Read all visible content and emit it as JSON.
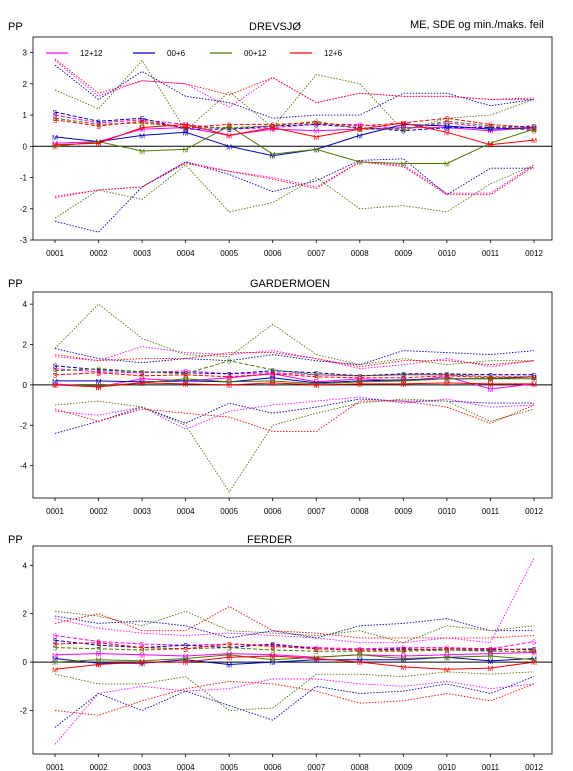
{
  "header": {
    "right_label": "ME, SDE og min./maks. feil"
  },
  "legend": [
    {
      "label": "12+12",
      "color": "#ff00ff"
    },
    {
      "label": "00+6",
      "color": "#0000c0"
    },
    {
      "label": "00+12",
      "color": "#507800"
    },
    {
      "label": "12+6",
      "color": "#ff0000"
    }
  ],
  "chart_data": [
    {
      "type": "line",
      "title": "DREVSJØ",
      "ylabel": "PP",
      "categories": [
        "0001",
        "0002",
        "0003",
        "0004",
        "0005",
        "0006",
        "0007",
        "0008",
        "0009",
        "0010",
        "0011",
        "0012"
      ],
      "ylim": [
        -3,
        3.5
      ],
      "yticks": [
        -3,
        -2,
        -1,
        0,
        1,
        2,
        3
      ],
      "series": [
        {
          "name": "12+12",
          "color": "#ff00ff",
          "me": [
            0.1,
            0.15,
            0.55,
            0.6,
            0.35,
            0.55,
            0.5,
            0.55,
            0.6,
            0.6,
            0.5,
            0.6
          ],
          "sde": [
            1.0,
            0.75,
            0.85,
            0.7,
            0.55,
            0.6,
            0.7,
            0.7,
            0.55,
            0.75,
            0.6,
            0.55
          ],
          "max": [
            2.75,
            1.6,
            2.1,
            2.0,
            1.25,
            2.2,
            1.4,
            1.7,
            1.6,
            1.6,
            1.5,
            1.5
          ],
          "min": [
            -1.6,
            -1.4,
            -1.3,
            -0.5,
            -0.8,
            -1.0,
            -1.3,
            -0.5,
            -0.6,
            -1.5,
            -1.5,
            -0.6
          ]
        },
        {
          "name": "00+6",
          "color": "#0000c0",
          "me": [
            0.3,
            0.15,
            0.35,
            0.45,
            0.0,
            -0.3,
            -0.1,
            0.35,
            0.7,
            0.65,
            0.55,
            0.6
          ],
          "sde": [
            1.1,
            0.8,
            0.9,
            0.55,
            0.55,
            0.65,
            0.7,
            0.6,
            0.5,
            0.6,
            0.6,
            0.65
          ],
          "max": [
            2.6,
            1.5,
            2.4,
            1.6,
            1.4,
            0.9,
            1.0,
            1.0,
            1.7,
            1.7,
            1.3,
            1.5
          ],
          "min": [
            -2.4,
            -2.75,
            -1.3,
            -0.5,
            -0.9,
            -1.45,
            -1.1,
            -0.45,
            -0.4,
            -1.55,
            -0.7,
            -0.7
          ]
        },
        {
          "name": "00+12",
          "color": "#507800",
          "me": [
            0.0,
            0.15,
            -0.15,
            -0.1,
            0.65,
            -0.25,
            -0.1,
            -0.5,
            -0.55,
            -0.55,
            0.1,
            0.55
          ],
          "sde": [
            0.9,
            0.7,
            0.75,
            0.6,
            0.6,
            0.65,
            0.8,
            0.55,
            0.55,
            0.8,
            0.65,
            0.5
          ],
          "max": [
            1.8,
            1.2,
            2.75,
            0.5,
            1.75,
            0.6,
            2.3,
            2.0,
            0.5,
            0.9,
            1.0,
            1.5
          ],
          "min": [
            -2.3,
            -1.4,
            -1.7,
            -0.6,
            -2.1,
            -1.8,
            -1.0,
            -2.0,
            -1.9,
            -2.1,
            -1.2,
            -0.6
          ]
        },
        {
          "name": "12+6",
          "color": "#ff0000",
          "me": [
            0.05,
            0.1,
            0.6,
            0.7,
            0.35,
            0.6,
            0.3,
            0.55,
            0.75,
            0.45,
            0.05,
            0.2
          ],
          "sde": [
            0.85,
            0.65,
            0.8,
            0.6,
            0.7,
            0.7,
            0.75,
            0.65,
            0.75,
            0.9,
            0.7,
            0.6
          ],
          "max": [
            2.8,
            1.7,
            2.1,
            2.0,
            1.65,
            2.2,
            1.4,
            1.7,
            1.6,
            1.6,
            1.5,
            1.55
          ],
          "min": [
            -1.65,
            -1.4,
            -1.3,
            -0.55,
            -0.8,
            -1.05,
            -1.35,
            -0.5,
            -0.65,
            -1.55,
            -1.55,
            -0.65
          ]
        }
      ]
    },
    {
      "type": "line",
      "title": "GARDERMOEN",
      "ylabel": "PP",
      "categories": [
        "0001",
        "0002",
        "0003",
        "0004",
        "0005",
        "0006",
        "0007",
        "0008",
        "0009",
        "0010",
        "0011",
        "0012"
      ],
      "ylim": [
        -5.6,
        4.6
      ],
      "yticks": [
        -4,
        -2,
        0,
        2,
        4
      ],
      "series": [
        {
          "name": "12+12",
          "color": "#ff00ff",
          "me": [
            0.05,
            -0.1,
            0.3,
            0.2,
            0.35,
            0.55,
            0.15,
            0.3,
            0.2,
            0.4,
            -0.2,
            0.05
          ],
          "sde": [
            0.8,
            0.65,
            0.6,
            0.7,
            0.55,
            0.6,
            0.5,
            0.45,
            0.5,
            0.5,
            0.5,
            0.5
          ],
          "max": [
            1.4,
            1.2,
            1.9,
            1.6,
            1.5,
            1.7,
            1.3,
            0.8,
            1.0,
            1.3,
            0.9,
            1.2
          ],
          "min": [
            -1.3,
            -1.5,
            -1.1,
            -2.2,
            -1.3,
            -1.0,
            -0.8,
            -0.6,
            -0.9,
            -0.7,
            -1.1,
            -1.0
          ]
        },
        {
          "name": "00+6",
          "color": "#0000c0",
          "me": [
            0.2,
            0.2,
            0.15,
            0.2,
            0.15,
            0.35,
            0.1,
            0.2,
            0.25,
            0.3,
            0.3,
            0.4
          ],
          "sde": [
            0.95,
            0.75,
            0.65,
            0.6,
            0.55,
            0.7,
            0.6,
            0.45,
            0.55,
            0.55,
            0.5,
            0.5
          ],
          "max": [
            1.8,
            1.3,
            1.1,
            1.3,
            1.2,
            1.5,
            1.2,
            1.0,
            1.7,
            1.6,
            1.5,
            1.7
          ],
          "min": [
            -2.4,
            -1.8,
            -1.1,
            -1.9,
            -0.9,
            -1.4,
            -1.1,
            -0.7,
            -0.8,
            -0.8,
            -0.9,
            -0.9
          ]
        },
        {
          "name": "00+12",
          "color": "#507800",
          "me": [
            0.0,
            -0.05,
            0.1,
            0.3,
            0.15,
            0.2,
            0.05,
            0.15,
            0.2,
            0.3,
            0.3,
            0.3
          ],
          "sde": [
            0.7,
            0.8,
            0.65,
            0.55,
            1.2,
            0.75,
            0.5,
            0.45,
            0.5,
            0.5,
            0.4,
            0.4
          ],
          "max": [
            1.8,
            4.0,
            2.3,
            1.5,
            1.4,
            3.0,
            1.5,
            1.0,
            1.3,
            1.0,
            1.2,
            1.2
          ],
          "min": [
            -1.0,
            -0.8,
            -1.1,
            -2.0,
            -5.3,
            -2.0,
            -1.4,
            -0.9,
            -0.7,
            -0.8,
            -1.8,
            -1.2
          ]
        },
        {
          "name": "12+6",
          "color": "#ff0000",
          "me": [
            0.0,
            -0.1,
            0.1,
            0.05,
            0.0,
            0.1,
            0.0,
            0.05,
            0.05,
            0.1,
            0.05,
            0.05
          ],
          "sde": [
            0.5,
            0.6,
            0.45,
            0.5,
            0.4,
            0.55,
            0.4,
            0.35,
            0.35,
            0.45,
            0.35,
            0.4
          ],
          "max": [
            1.5,
            1.2,
            1.3,
            1.3,
            1.6,
            1.6,
            1.3,
            0.9,
            1.2,
            1.2,
            1.0,
            1.2
          ],
          "min": [
            -1.2,
            -1.8,
            -1.2,
            -1.4,
            -1.6,
            -2.3,
            -2.3,
            -0.8,
            -0.8,
            -1.1,
            -1.9,
            -1.0
          ]
        }
      ]
    },
    {
      "type": "line",
      "title": "FERDER",
      "ylabel": "PP",
      "categories": [
        "0001",
        "0002",
        "0003",
        "0004",
        "0005",
        "0006",
        "0007",
        "0008",
        "0009",
        "0010",
        "0011",
        "0012"
      ],
      "ylim": [
        -3.8,
        4.8
      ],
      "yticks": [
        -2,
        0,
        2,
        4
      ],
      "series": [
        {
          "name": "12+12",
          "color": "#ff00ff",
          "me": [
            0.3,
            0.35,
            0.3,
            0.25,
            0.35,
            0.3,
            0.2,
            0.3,
            0.25,
            0.3,
            0.35,
            0.4
          ],
          "sde": [
            1.1,
            0.85,
            0.75,
            0.7,
            0.75,
            0.7,
            0.6,
            0.55,
            0.6,
            0.6,
            0.55,
            0.85
          ],
          "max": [
            1.8,
            1.4,
            1.2,
            1.1,
            1.2,
            1.1,
            1.0,
            0.8,
            0.8,
            1.0,
            0.8,
            4.3
          ],
          "min": [
            -3.4,
            -1.3,
            -1.0,
            -1.2,
            -1.1,
            -0.7,
            -0.7,
            -0.9,
            -1.0,
            -0.8,
            -1.1,
            -0.9
          ]
        },
        {
          "name": "00+6",
          "color": "#0000c0",
          "me": [
            0.15,
            -0.05,
            -0.05,
            0.1,
            -0.1,
            0.0,
            0.1,
            0.1,
            0.1,
            0.2,
            0.05,
            0.15
          ],
          "sde": [
            0.9,
            0.7,
            0.6,
            0.7,
            0.6,
            0.75,
            0.55,
            0.5,
            0.55,
            0.5,
            0.5,
            0.55
          ],
          "max": [
            1.9,
            1.6,
            1.7,
            1.5,
            1.0,
            1.3,
            1.0,
            1.5,
            1.6,
            1.8,
            1.3,
            1.3
          ],
          "min": [
            -2.7,
            -1.3,
            -2.0,
            -1.2,
            -1.8,
            -2.4,
            -1.0,
            -1.3,
            -1.2,
            -0.9,
            -1.3,
            -0.6
          ]
        },
        {
          "name": "00+12",
          "color": "#507800",
          "me": [
            0.0,
            0.1,
            0.05,
            0.15,
            0.3,
            0.1,
            0.2,
            0.3,
            0.15,
            0.2,
            0.25,
            0.1
          ],
          "sde": [
            0.6,
            0.55,
            0.5,
            0.55,
            0.6,
            0.5,
            0.45,
            0.45,
            0.45,
            0.5,
            0.45,
            0.45
          ],
          "max": [
            2.1,
            1.9,
            1.5,
            2.1,
            1.3,
            1.2,
            1.1,
            1.3,
            0.8,
            1.5,
            1.3,
            1.5
          ],
          "min": [
            -0.5,
            -0.9,
            -0.9,
            -0.6,
            -2.0,
            -1.9,
            -0.5,
            -0.5,
            -0.6,
            -0.4,
            -0.5,
            -0.4
          ]
        },
        {
          "name": "12+6",
          "color": "#ff0000",
          "me": [
            -0.3,
            -0.1,
            0.0,
            0.0,
            0.2,
            0.25,
            0.15,
            0.0,
            -0.2,
            -0.3,
            -0.25,
            0.0
          ],
          "sde": [
            0.75,
            0.8,
            0.6,
            0.55,
            0.75,
            0.65,
            0.55,
            0.5,
            0.5,
            0.55,
            0.55,
            0.5
          ],
          "max": [
            1.6,
            2.0,
            1.3,
            1.3,
            2.3,
            1.3,
            1.2,
            1.0,
            1.0,
            1.0,
            1.0,
            1.1
          ],
          "min": [
            -2.0,
            -2.2,
            -1.6,
            -1.1,
            -0.8,
            -0.9,
            -1.2,
            -1.7,
            -1.6,
            -1.3,
            -1.6,
            -0.9
          ]
        }
      ]
    }
  ]
}
